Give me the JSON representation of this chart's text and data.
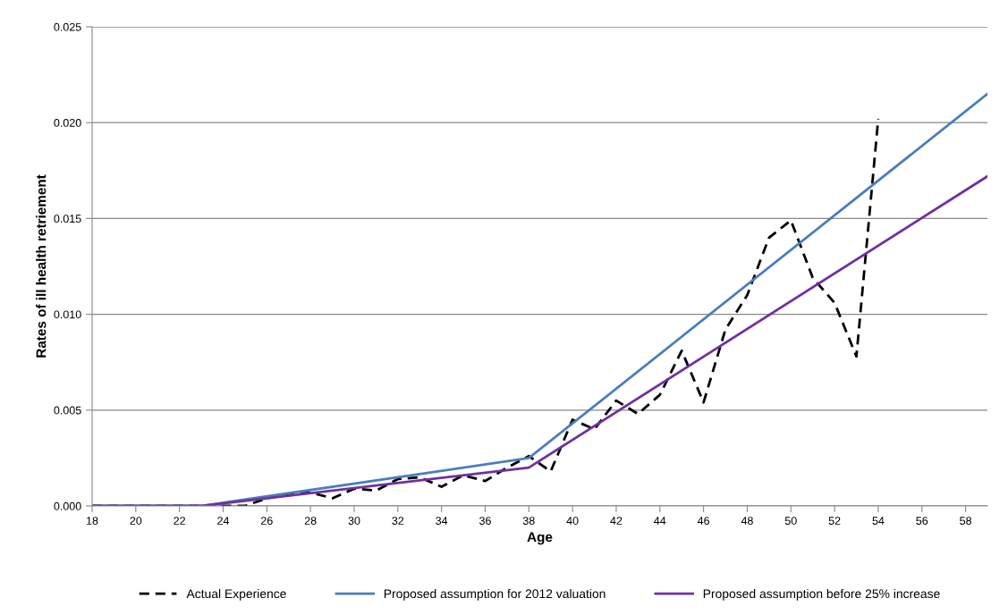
{
  "chart_data": {
    "type": "line",
    "xlabel": "Age",
    "ylabel": "Rates of ill health retriement",
    "xlim": [
      18,
      59
    ],
    "xticks": [
      18,
      20,
      22,
      24,
      26,
      28,
      30,
      32,
      34,
      36,
      38,
      40,
      42,
      44,
      46,
      48,
      50,
      52,
      54,
      56,
      58
    ],
    "ylim": [
      0,
      0.025
    ],
    "yticks": [
      {
        "value": 0,
        "label": "0.000"
      },
      {
        "value": 0.005,
        "label": "0.005"
      },
      {
        "value": 0.01,
        "label": "0.010"
      },
      {
        "value": 0.015,
        "label": "0.015"
      },
      {
        "value": 0.02,
        "label": "0.020"
      },
      {
        "value": 0.025,
        "label": "0.025"
      }
    ],
    "grid": "y",
    "legend": "bottom",
    "marker": "none",
    "series": [
      {
        "name": "Actual Experience",
        "color": "#000000",
        "line_style": "dashed",
        "x": [
          18,
          19,
          20,
          21,
          22,
          23,
          24,
          25,
          26,
          27,
          28,
          29,
          30,
          31,
          32,
          33,
          34,
          35,
          36,
          37,
          38,
          39,
          40,
          41,
          42,
          43,
          44,
          45,
          46,
          47,
          48,
          49,
          50,
          51,
          52,
          53,
          54
        ],
        "values": [
          0,
          0,
          0,
          0,
          0,
          0,
          0,
          0,
          0.0004,
          0.0006,
          0.0007,
          0.0004,
          0.0009,
          0.0008,
          0.0014,
          0.0015,
          0.001,
          0.0016,
          0.0013,
          0.002,
          0.0026,
          0.0018,
          0.0045,
          0.004,
          0.0055,
          0.0048,
          0.0058,
          0.0081,
          0.0054,
          0.0092,
          0.011,
          0.014,
          0.0149,
          0.0119,
          0.0106,
          0.0078,
          0.0202
        ]
      },
      {
        "name": "Proposed assumption for 2012 valuation",
        "color": "#4a7ebb",
        "line_style": "solid",
        "x": [
          18,
          23,
          38,
          59
        ],
        "values": [
          0,
          0,
          0.0025,
          0.0215
        ]
      },
      {
        "name": "Proposed assumption before 25% increase",
        "color": "#7030a0",
        "line_style": "solid",
        "x": [
          18,
          23,
          38,
          59
        ],
        "values": [
          0,
          0,
          0.002,
          0.0172
        ]
      }
    ]
  }
}
